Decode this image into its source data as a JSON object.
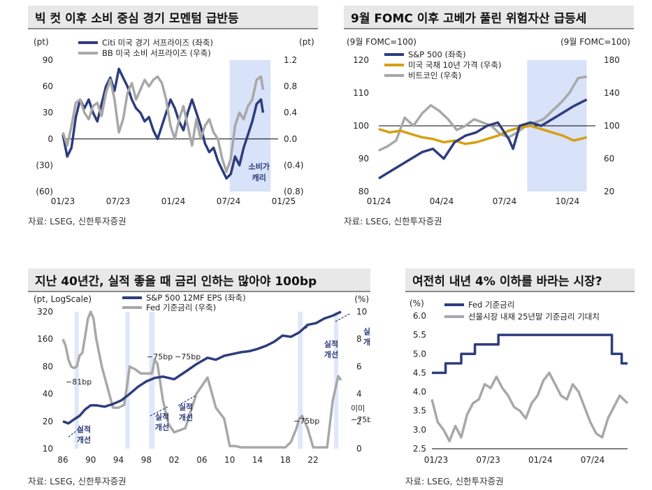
{
  "colors": {
    "navy": "#2e3d7e",
    "gray": "#a8a8a8",
    "gold": "#d6a012",
    "shade": "#d8e2f8",
    "shade2": "#dfe7fa"
  },
  "source_text": "자료: LSEG, 신한투자증권",
  "chart_data": [
    {
      "type": "line",
      "title": "빅 컷 이후 소비 중심 경기 모멘텀 급반등",
      "left_unit": "(pt)",
      "right_unit": "(pt)",
      "ylim": [
        -60,
        90
      ],
      "y2lim": [
        -0.8,
        1.2
      ],
      "y_ticks": [
        "90",
        "60",
        "30",
        "0",
        "(30)",
        "(60)"
      ],
      "y2_ticks": [
        "1.2",
        "0.8",
        "0.4",
        "0.0",
        "(0.4)",
        "(0.8)"
      ],
      "x_ticks": [
        "01/23",
        "07/23",
        "01/24",
        "07/24",
        "01/25"
      ],
      "shade": [
        0.775,
        0.965
      ],
      "annotation": [
        "소비가",
        "캐리"
      ],
      "series": [
        {
          "name": "Citi 미국 경기 서프라이즈 (좌축)",
          "axis": "left",
          "color": "navy",
          "x": [
            0.0,
            0.02,
            0.04,
            0.06,
            0.08,
            0.1,
            0.12,
            0.14,
            0.16,
            0.18,
            0.2,
            0.22,
            0.24,
            0.26,
            0.28,
            0.3,
            0.32,
            0.34,
            0.36,
            0.38,
            0.4,
            0.42,
            0.44,
            0.46,
            0.48,
            0.5,
            0.52,
            0.54,
            0.56,
            0.58,
            0.6,
            0.62,
            0.64,
            0.66,
            0.68,
            0.7,
            0.72,
            0.74,
            0.76,
            0.78,
            0.8,
            0.82,
            0.84,
            0.86,
            0.88,
            0.9,
            0.92,
            0.93
          ],
          "y": [
            5,
            -20,
            -10,
            25,
            45,
            35,
            45,
            30,
            20,
            40,
            60,
            70,
            55,
            80,
            70,
            60,
            45,
            35,
            30,
            20,
            25,
            10,
            0,
            15,
            30,
            45,
            35,
            20,
            10,
            30,
            45,
            30,
            15,
            -5,
            -15,
            -10,
            -25,
            -35,
            -45,
            -40,
            -20,
            -30,
            -10,
            5,
            20,
            40,
            45,
            30
          ]
        },
        {
          "name": "BB 미국 소비 서프라이즈 (우축)",
          "axis": "right",
          "color": "gray",
          "x": [
            0.0,
            0.02,
            0.04,
            0.06,
            0.08,
            0.1,
            0.12,
            0.14,
            0.16,
            0.18,
            0.2,
            0.22,
            0.24,
            0.26,
            0.28,
            0.3,
            0.32,
            0.34,
            0.36,
            0.38,
            0.4,
            0.42,
            0.44,
            0.46,
            0.48,
            0.5,
            0.52,
            0.54,
            0.56,
            0.58,
            0.6,
            0.62,
            0.64,
            0.66,
            0.68,
            0.7,
            0.72,
            0.74,
            0.76,
            0.78,
            0.8,
            0.82,
            0.84,
            0.86,
            0.88,
            0.9,
            0.92,
            0.93
          ],
          "y": [
            0.1,
            -0.1,
            0.2,
            0.55,
            0.6,
            0.4,
            0.3,
            0.5,
            0.55,
            0.35,
            0.7,
            0.9,
            0.6,
            0.1,
            0.3,
            0.7,
            0.85,
            0.6,
            0.75,
            0.9,
            0.8,
            0.9,
            0.95,
            0.85,
            0.6,
            0.2,
            0.0,
            0.3,
            0.5,
            0.2,
            -0.1,
            0.3,
            0.0,
            0.2,
            0.3,
            0.1,
            0.0,
            -0.3,
            -0.5,
            -0.3,
            0.2,
            0.4,
            0.3,
            0.5,
            0.6,
            0.9,
            0.95,
            0.75
          ]
        }
      ]
    },
    {
      "type": "line",
      "title": "9월 FOMC 이후 고베가 풀린 위험자산 급등세",
      "left_unit": "(9월 FOMC=100)",
      "right_unit": "(9월 FOMC=100)",
      "ylim": [
        80,
        120
      ],
      "y2lim": [
        20,
        180
      ],
      "y_ticks": [
        "120",
        "110",
        "100",
        "90",
        "80"
      ],
      "y2_ticks": [
        "180",
        "140",
        "100",
        "60",
        "20"
      ],
      "x_ticks": [
        "01/24",
        "04/24",
        "07/24",
        "10/24"
      ],
      "shade": [
        0.685,
        0.96
      ],
      "baseline": 100,
      "series": [
        {
          "name": "S&P 500 (좌축)",
          "axis": "left",
          "color": "navy",
          "x": [
            0.0,
            0.05,
            0.1,
            0.15,
            0.2,
            0.25,
            0.3,
            0.35,
            0.4,
            0.45,
            0.5,
            0.55,
            0.6,
            0.62,
            0.65,
            0.7,
            0.75,
            0.8,
            0.85,
            0.9,
            0.93,
            0.96
          ],
          "y": [
            84,
            86,
            88,
            90,
            92,
            93,
            90,
            95,
            97,
            98,
            100,
            101,
            96,
            93,
            100,
            101,
            100,
            102,
            104,
            106,
            107,
            108
          ]
        },
        {
          "name": "미국 국채 10년 가격 (우축)",
          "axis": "right",
          "color": "gold",
          "x": [
            0.0,
            0.05,
            0.1,
            0.15,
            0.2,
            0.25,
            0.3,
            0.35,
            0.4,
            0.45,
            0.5,
            0.55,
            0.6,
            0.65,
            0.7,
            0.75,
            0.8,
            0.85,
            0.9,
            0.93,
            0.96
          ],
          "y": [
            96,
            92,
            94,
            90,
            86,
            84,
            80,
            82,
            78,
            80,
            84,
            88,
            94,
            98,
            100,
            96,
            92,
            88,
            82,
            84,
            86
          ]
        },
        {
          "name": "비트코인 (우축)",
          "axis": "right",
          "color": "gray",
          "x": [
            0.0,
            0.04,
            0.08,
            0.12,
            0.16,
            0.2,
            0.24,
            0.28,
            0.32,
            0.36,
            0.4,
            0.44,
            0.48,
            0.52,
            0.56,
            0.6,
            0.64,
            0.68,
            0.72,
            0.76,
            0.8,
            0.84,
            0.88,
            0.92,
            0.96
          ],
          "y": [
            70,
            75,
            82,
            110,
            100,
            115,
            125,
            118,
            108,
            95,
            100,
            108,
            104,
            100,
            90,
            86,
            92,
            100,
            104,
            108,
            118,
            128,
            140,
            158,
            160
          ]
        }
      ]
    },
    {
      "type": "line",
      "title": "지난 40년간, 실적 좋을 때 금리 인하는 많아야 100bp",
      "left_unit": "(pt, LogScale)",
      "right_unit": "(%)",
      "y_ticks": [
        "320",
        "160",
        "80",
        "40",
        "20",
        "10"
      ],
      "y2_ticks": [
        "10",
        "8",
        "6",
        "4",
        "2",
        "0"
      ],
      "x_ticks": [
        "86",
        "90",
        "94",
        "98",
        "02",
        "06",
        "10",
        "14",
        "18",
        "22"
      ],
      "y2lim": [
        0,
        10
      ],
      "shades": [
        [
          0.042,
          0.057
        ],
        [
          0.225,
          0.24
        ],
        [
          0.31,
          0.33
        ],
        [
          0.845,
          0.862
        ],
        [
          0.975,
          0.99
        ]
      ],
      "cut_labels": [
        "−81bp",
        "−75bp",
        "−75bp",
        "−75bp",
        "이미",
        "−75bp"
      ],
      "improve_label": [
        "실적",
        "개선"
      ],
      "series": [
        {
          "name": "S&P 500 12MF EPS (좌축)",
          "axis": "left",
          "color": "navy",
          "x": [
            0.0,
            0.02,
            0.04,
            0.06,
            0.08,
            0.1,
            0.12,
            0.15,
            0.18,
            0.21,
            0.24,
            0.27,
            0.3,
            0.33,
            0.36,
            0.4,
            0.44,
            0.48,
            0.52,
            0.55,
            0.58,
            0.61,
            0.64,
            0.67,
            0.7,
            0.73,
            0.76,
            0.79,
            0.82,
            0.85,
            0.88,
            0.91,
            0.94,
            0.97,
            1.0
          ],
          "y": [
            20,
            19,
            21,
            23,
            27,
            30,
            30,
            29,
            31,
            34,
            40,
            48,
            55,
            60,
            62,
            58,
            70,
            85,
            100,
            95,
            105,
            110,
            115,
            118,
            125,
            135,
            150,
            175,
            170,
            190,
            230,
            240,
            270,
            290,
            320
          ]
        },
        {
          "name": "Fed 기준금리 (우축)",
          "axis": "right",
          "color": "gray",
          "x": [
            0.0,
            0.01,
            0.02,
            0.03,
            0.04,
            0.05,
            0.06,
            0.07,
            0.08,
            0.09,
            0.1,
            0.11,
            0.12,
            0.14,
            0.16,
            0.18,
            0.2,
            0.22,
            0.23,
            0.24,
            0.26,
            0.28,
            0.3,
            0.32,
            0.33,
            0.34,
            0.36,
            0.38,
            0.4,
            0.44,
            0.48,
            0.52,
            0.55,
            0.58,
            0.6,
            0.62,
            0.64,
            0.66,
            0.68,
            0.7,
            0.75,
            0.8,
            0.82,
            0.84,
            0.85,
            0.86,
            0.88,
            0.9,
            0.93,
            0.95,
            0.97,
            0.99,
            1.0
          ],
          "y": [
            8,
            7.5,
            6.5,
            6,
            5.9,
            6,
            6.8,
            7,
            8.2,
            9.5,
            10,
            9.5,
            8,
            6,
            4.5,
            3,
            3,
            3.2,
            4.5,
            6,
            5.8,
            5.5,
            5.5,
            5.5,
            6.5,
            6.2,
            3.5,
            1.8,
            1.2,
            1.5,
            4,
            5.2,
            3,
            2.2,
            0.2,
            0.2,
            0.1,
            0.1,
            0.1,
            0.1,
            0.1,
            0.1,
            0.5,
            1.5,
            2.2,
            2.4,
            1.5,
            0.1,
            0.1,
            0.1,
            3.5,
            5.3,
            5.0
          ]
        }
      ]
    },
    {
      "type": "line",
      "title": "여전히 내년 4% 이하를 바라는 시장?",
      "left_unit": "(%)",
      "ylim": [
        2.5,
        6.0
      ],
      "y_ticks": [
        "6.0",
        "5.5",
        "5.0",
        "4.5",
        "4.0",
        "3.5",
        "3.0",
        "2.5"
      ],
      "x_ticks": [
        "01/23",
        "07/23",
        "01/24",
        "07/24"
      ],
      "series": [
        {
          "name": "Fed 기준금리",
          "axis": "left",
          "color": "navy",
          "x": [
            0.0,
            0.07,
            0.07,
            0.15,
            0.15,
            0.22,
            0.22,
            0.34,
            0.34,
            0.92,
            0.92,
            0.97,
            0.97,
            1.0
          ],
          "y": [
            4.5,
            4.5,
            4.75,
            4.75,
            5.0,
            5.0,
            5.25,
            5.25,
            5.5,
            5.5,
            5.0,
            5.0,
            4.75,
            4.75
          ]
        },
        {
          "name": "선물시장 내재 25년말 기준금리 기대치",
          "axis": "left",
          "color": "gray",
          "x": [
            0.0,
            0.03,
            0.06,
            0.09,
            0.12,
            0.15,
            0.18,
            0.21,
            0.24,
            0.27,
            0.3,
            0.33,
            0.36,
            0.39,
            0.42,
            0.45,
            0.48,
            0.51,
            0.54,
            0.57,
            0.6,
            0.63,
            0.66,
            0.69,
            0.72,
            0.75,
            0.78,
            0.81,
            0.84,
            0.87,
            0.9,
            0.93,
            0.96,
            1.0
          ],
          "y": [
            3.8,
            3.2,
            3.0,
            2.7,
            3.1,
            2.8,
            3.4,
            3.7,
            3.8,
            4.2,
            4.1,
            4.4,
            4.1,
            3.9,
            3.6,
            3.5,
            3.3,
            3.7,
            3.9,
            4.3,
            4.5,
            4.2,
            3.9,
            3.8,
            4.2,
            4.0,
            3.6,
            3.2,
            2.9,
            2.8,
            3.3,
            3.6,
            3.9,
            3.7
          ]
        }
      ]
    }
  ]
}
